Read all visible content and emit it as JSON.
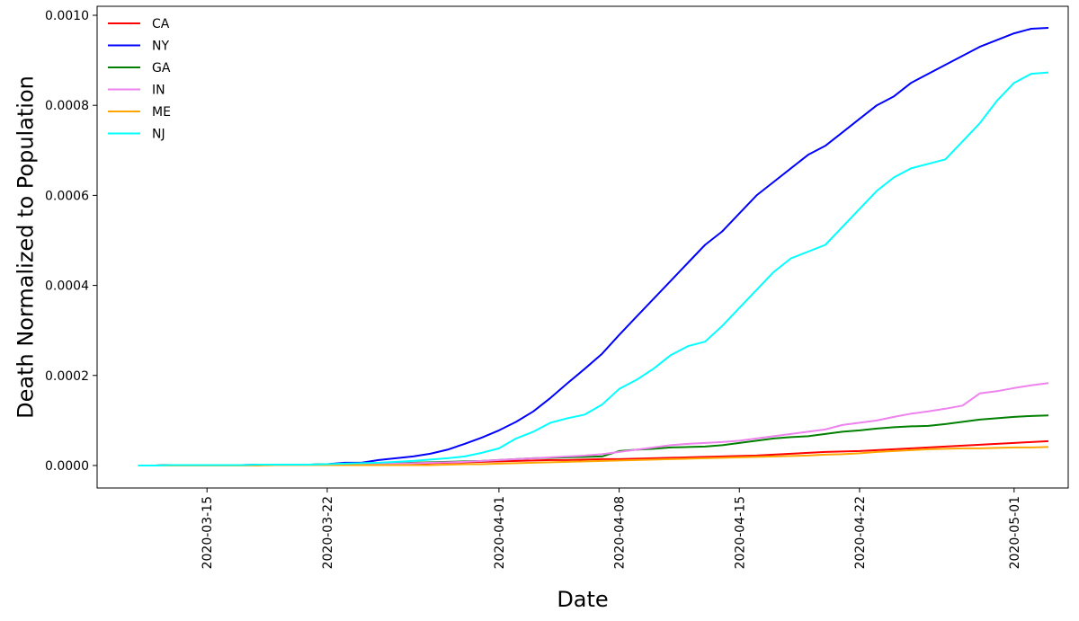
{
  "chart_data": {
    "type": "line",
    "title": "",
    "xlabel": "Date",
    "ylabel": "Death Normalized to Population",
    "x_start": "2020-03-11",
    "x_end": "2020-05-03",
    "x_dates": [
      "2020-03-11",
      "2020-03-12",
      "2020-03-13",
      "2020-03-14",
      "2020-03-15",
      "2020-03-16",
      "2020-03-17",
      "2020-03-18",
      "2020-03-19",
      "2020-03-20",
      "2020-03-21",
      "2020-03-22",
      "2020-03-23",
      "2020-03-24",
      "2020-03-25",
      "2020-03-26",
      "2020-03-27",
      "2020-03-28",
      "2020-03-29",
      "2020-03-30",
      "2020-03-31",
      "2020-04-01",
      "2020-04-02",
      "2020-04-03",
      "2020-04-04",
      "2020-04-05",
      "2020-04-06",
      "2020-04-07",
      "2020-04-08",
      "2020-04-09",
      "2020-04-10",
      "2020-04-11",
      "2020-04-12",
      "2020-04-13",
      "2020-04-14",
      "2020-04-15",
      "2020-04-16",
      "2020-04-17",
      "2020-04-18",
      "2020-04-19",
      "2020-04-20",
      "2020-04-21",
      "2020-04-22",
      "2020-04-23",
      "2020-04-24",
      "2020-04-25",
      "2020-04-26",
      "2020-04-27",
      "2020-04-28",
      "2020-04-29",
      "2020-04-30",
      "2020-05-01",
      "2020-05-02",
      "2020-05-03"
    ],
    "xticks": [
      "2020-03-15",
      "2020-03-22",
      "2020-04-01",
      "2020-04-08",
      "2020-04-15",
      "2020-04-22",
      "2020-05-01"
    ],
    "ylim": [
      -5e-05,
      0.00102
    ],
    "yticks": [
      0.0,
      0.0002,
      0.0004,
      0.0006,
      0.0008,
      0.001
    ],
    "ytick_labels": [
      "0.0000",
      "0.0002",
      "0.0004",
      "0.0006",
      "0.0008",
      "0.0010"
    ],
    "grid": false,
    "legend_position": "top-left",
    "series": [
      {
        "name": "CA",
        "color": "#ff0000",
        "values": [
          0.0,
          0.0,
          1e-06,
          1e-06,
          1e-06,
          1e-06,
          1e-06,
          1e-06,
          1e-06,
          1e-06,
          2e-06,
          2e-06,
          2e-06,
          3e-06,
          3e-06,
          4e-06,
          4e-06,
          5e-06,
          6e-06,
          7e-06,
          8e-06,
          9e-06,
          1e-05,
          1.1e-05,
          1.2e-05,
          1.2e-05,
          1.3e-05,
          1.4e-05,
          1.4e-05,
          1.5e-05,
          1.6e-05,
          1.7e-05,
          1.8e-05,
          1.9e-05,
          2e-05,
          2.1e-05,
          2.2e-05,
          2.4e-05,
          2.6e-05,
          2.8e-05,
          3e-05,
          3.1e-05,
          3.2e-05,
          3.4e-05,
          3.6e-05,
          3.8e-05,
          4e-05,
          4.2e-05,
          4.4e-05,
          4.6e-05,
          4.8e-05,
          5e-05,
          5.2e-05,
          5.4e-05
        ]
      },
      {
        "name": "NY",
        "color": "#0000ff",
        "values": [
          0.0,
          0.0,
          1e-06,
          1e-06,
          1e-06,
          1e-06,
          1e-06,
          2e-06,
          2e-06,
          2e-06,
          2e-06,
          3e-06,
          6e-06,
          6e-06,
          1.2e-05,
          1.6e-05,
          2e-05,
          2.6e-05,
          3.5e-05,
          4.8e-05,
          6.2e-05,
          7.8e-05,
          9.7e-05,
          0.00012,
          0.00015,
          0.000183,
          0.000215,
          0.000248,
          0.00029,
          0.00033,
          0.00037,
          0.00041,
          0.00045,
          0.00049,
          0.00052,
          0.00056,
          0.0006,
          0.00063,
          0.00066,
          0.00069,
          0.00071,
          0.00074,
          0.00077,
          0.0008,
          0.00082,
          0.00085,
          0.00087,
          0.00089,
          0.00091,
          0.00093,
          0.000945,
          0.00096,
          0.00097,
          0.000972
        ]
      },
      {
        "name": "GA",
        "color": "#008000",
        "values": [
          0.0,
          0.0,
          1e-06,
          1e-06,
          1e-06,
          1e-06,
          1e-06,
          1e-06,
          2e-06,
          2e-06,
          2e-06,
          3e-06,
          3e-06,
          3e-06,
          4e-06,
          5e-06,
          6e-06,
          7e-06,
          8e-06,
          9e-06,
          1e-05,
          1.2e-05,
          1.4e-05,
          1.6e-05,
          1.7e-05,
          1.8e-05,
          1.9e-05,
          2e-05,
          3.2e-05,
          3.5e-05,
          3.7e-05,
          4e-05,
          4.1e-05,
          4.2e-05,
          4.5e-05,
          5e-05,
          5.5e-05,
          6e-05,
          6.3e-05,
          6.5e-05,
          7e-05,
          7.5e-05,
          7.8e-05,
          8.2e-05,
          8.5e-05,
          8.7e-05,
          8.8e-05,
          9.2e-05,
          9.7e-05,
          0.000102,
          0.000105,
          0.000108,
          0.00011,
          0.000111
        ]
      },
      {
        "name": "IN",
        "color": "#ee82ee",
        "values": [
          0.0,
          0.0,
          0.0,
          0.0,
          0.0,
          0.0,
          0.0,
          1e-06,
          1e-06,
          1e-06,
          1e-06,
          1e-06,
          2e-06,
          2e-06,
          3e-06,
          4e-06,
          5e-06,
          6e-06,
          7e-06,
          8e-06,
          1e-05,
          1.2e-05,
          1.4e-05,
          1.6e-05,
          1.8e-05,
          2e-05,
          2.2e-05,
          2.5e-05,
          3e-05,
          3.5e-05,
          4e-05,
          4.5e-05,
          4.8e-05,
          5e-05,
          5.2e-05,
          5.5e-05,
          6e-05,
          6.5e-05,
          7e-05,
          7.5e-05,
          8e-05,
          9e-05,
          9.5e-05,
          0.0001,
          0.000108,
          0.000115,
          0.00012,
          0.000126,
          0.000133,
          0.00016,
          0.000165,
          0.000172,
          0.000178,
          0.000183
        ]
      },
      {
        "name": "ME",
        "color": "#ffa500",
        "values": [
          0.0,
          0.0,
          0.0,
          0.0,
          0.0,
          0.0,
          0.0,
          0.0,
          1e-06,
          1e-06,
          1e-06,
          1e-06,
          1e-06,
          1e-06,
          1e-06,
          1e-06,
          1e-06,
          1e-06,
          2e-06,
          3e-06,
          3e-06,
          4e-06,
          5e-06,
          6e-06,
          7e-06,
          8e-06,
          9e-06,
          1e-05,
          1.1e-05,
          1.2e-05,
          1.3e-05,
          1.4e-05,
          1.5e-05,
          1.6e-05,
          1.7e-05,
          1.8e-05,
          1.9e-05,
          2e-05,
          2.1e-05,
          2.2e-05,
          2.4e-05,
          2.5e-05,
          2.7e-05,
          3e-05,
          3.2e-05,
          3.4e-05,
          3.6e-05,
          3.7e-05,
          3.8e-05,
          3.8e-05,
          3.9e-05,
          4e-05,
          4e-05,
          4.1e-05
        ]
      },
      {
        "name": "NJ",
        "color": "#00ffff",
        "values": [
          0.0,
          0.0,
          1e-06,
          1e-06,
          1e-06,
          1e-06,
          1e-06,
          2e-06,
          2e-06,
          2e-06,
          2e-06,
          3e-06,
          4e-06,
          5e-06,
          6e-06,
          8e-06,
          1e-05,
          1.3e-05,
          1.6e-05,
          2e-05,
          2.8e-05,
          3.8e-05,
          6e-05,
          7.5e-05,
          9.5e-05,
          0.000105,
          0.000113,
          0.000135,
          0.00017,
          0.00019,
          0.000215,
          0.000245,
          0.000265,
          0.000275,
          0.00031,
          0.00035,
          0.00039,
          0.00043,
          0.00046,
          0.000475,
          0.00049,
          0.00053,
          0.00057,
          0.00061,
          0.00064,
          0.00066,
          0.00067,
          0.00068,
          0.00072,
          0.00076,
          0.00081,
          0.00085,
          0.00087,
          0.000873
        ]
      }
    ]
  }
}
